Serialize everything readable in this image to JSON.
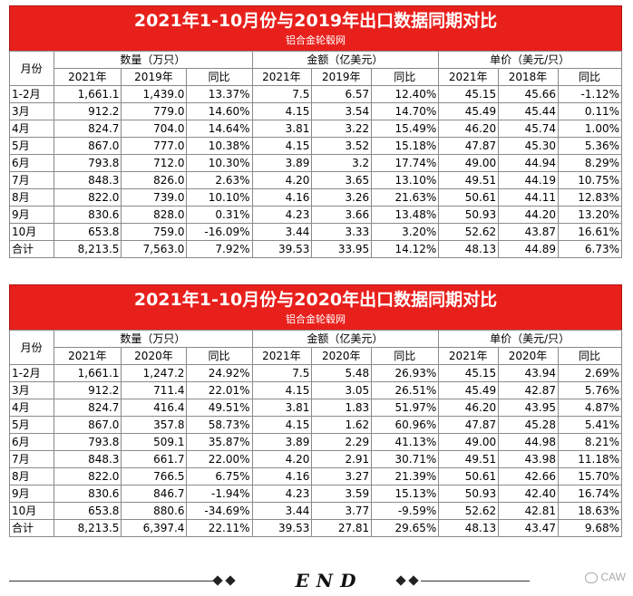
{
  "watermark_color": "#e8201c",
  "tables": [
    {
      "title": "2021年1-10月份与2019年出口数据同期对比",
      "subtitle": "铝合金轮毂网",
      "month_header": "月份",
      "groups": [
        "数量（万只）",
        "金额（亿美元）",
        "单价（美元/只）"
      ],
      "subheaders": [
        "2021年",
        "2019年",
        "同比",
        "2021年",
        "2019年",
        "同比",
        "2021年",
        "2018年",
        "同比"
      ],
      "rows": [
        [
          "1-2月",
          "1,661.1",
          "1,439.0",
          "13.37%",
          "7.5",
          "6.57",
          "12.40%",
          "45.15",
          "45.66",
          "-1.12%"
        ],
        [
          "3月",
          "912.2",
          "779.0",
          "14.60%",
          "4.15",
          "3.54",
          "14.70%",
          "45.49",
          "45.44",
          "0.11%"
        ],
        [
          "4月",
          "824.7",
          "704.0",
          "14.64%",
          "3.81",
          "3.22",
          "15.49%",
          "46.20",
          "45.74",
          "1.00%"
        ],
        [
          "5月",
          "867.0",
          "777.0",
          "10.38%",
          "4.15",
          "3.52",
          "15.18%",
          "47.87",
          "45.30",
          "5.36%"
        ],
        [
          "6月",
          "793.8",
          "712.0",
          "10.30%",
          "3.89",
          "3.2",
          "17.74%",
          "49.00",
          "44.94",
          "8.29%"
        ],
        [
          "7月",
          "848.3",
          "826.0",
          "2.63%",
          "4.20",
          "3.65",
          "13.10%",
          "49.51",
          "44.19",
          "10.75%"
        ],
        [
          "8月",
          "822.0",
          "739.0",
          "10.10%",
          "4.16",
          "3.26",
          "21.63%",
          "50.61",
          "44.11",
          "12.83%"
        ],
        [
          "9月",
          "830.6",
          "828.0",
          "0.31%",
          "4.23",
          "3.66",
          "13.48%",
          "50.93",
          "44.20",
          "13.20%"
        ],
        [
          "10月",
          "653.8",
          "759.0",
          "-16.09%",
          "3.44",
          "3.33",
          "3.20%",
          "52.62",
          "43.87",
          "16.61%"
        ],
        [
          "合计",
          "8,213.5",
          "7,563.0",
          "7.92%",
          "39.53",
          "33.95",
          "14.12%",
          "48.13",
          "44.89",
          "6.73%"
        ]
      ]
    },
    {
      "title": "2021年1-10月份与2020年出口数据同期对比",
      "subtitle": "铝合金轮毂网",
      "month_header": "月份",
      "groups": [
        "数量（万只）",
        "金额（亿美元）",
        "单价（美元/只）"
      ],
      "subheaders": [
        "2021年",
        "2020年",
        "同比",
        "2021年",
        "2020年",
        "同比",
        "2021年",
        "2020年",
        "同比"
      ],
      "rows": [
        [
          "1-2月",
          "1,661.1",
          "1,247.2",
          "24.92%",
          "7.5",
          "5.48",
          "26.93%",
          "45.15",
          "43.94",
          "2.69%"
        ],
        [
          "3月",
          "912.2",
          "711.4",
          "22.01%",
          "4.15",
          "3.05",
          "26.51%",
          "45.49",
          "42.87",
          "5.76%"
        ],
        [
          "4月",
          "824.7",
          "416.4",
          "49.51%",
          "3.81",
          "1.83",
          "51.97%",
          "46.20",
          "43.95",
          "4.87%"
        ],
        [
          "5月",
          "867.0",
          "357.8",
          "58.73%",
          "4.15",
          "1.62",
          "60.96%",
          "47.87",
          "45.28",
          "5.41%"
        ],
        [
          "6月",
          "793.8",
          "509.1",
          "35.87%",
          "3.89",
          "2.29",
          "41.13%",
          "49.00",
          "44.98",
          "8.21%"
        ],
        [
          "7月",
          "848.3",
          "661.7",
          "22.00%",
          "4.20",
          "2.91",
          "30.71%",
          "49.51",
          "43.98",
          "11.18%"
        ],
        [
          "8月",
          "822.0",
          "766.5",
          "6.75%",
          "4.16",
          "3.27",
          "21.39%",
          "50.61",
          "42.66",
          "15.70%"
        ],
        [
          "9月",
          "830.6",
          "846.7",
          "-1.94%",
          "4.23",
          "3.59",
          "15.13%",
          "50.93",
          "42.40",
          "16.74%"
        ],
        [
          "10月",
          "653.8",
          "880.6",
          "-34.69%",
          "3.44",
          "3.77",
          "-9.59%",
          "52.62",
          "42.81",
          "18.63%"
        ],
        [
          "合计",
          "8,213.5",
          "6,397.4",
          "22.11%",
          "39.53",
          "27.81",
          "29.65%",
          "48.13",
          "43.47",
          "9.68%"
        ]
      ]
    }
  ],
  "footer": {
    "end_text": "END",
    "logo_text": "CAW"
  }
}
